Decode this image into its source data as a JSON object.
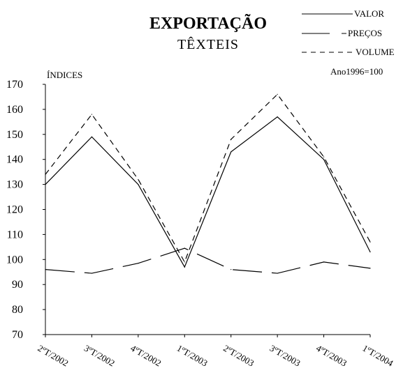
{
  "chart_data": {
    "type": "line",
    "title": "EXPORTAÇÃO",
    "subtitle": "TÊXTEIS",
    "ylabel": "ÍNDICES",
    "note": "Ano1996=100",
    "categories": [
      "2ºT/2002",
      "3ºT/2002",
      "4ºT/2002",
      "1ºT/2003",
      "2ºT/2003",
      "3ºT/2003",
      "4ºT/2003",
      "1ºT/2004"
    ],
    "ylim": [
      70,
      170
    ],
    "yticks": [
      70,
      80,
      90,
      100,
      110,
      120,
      130,
      140,
      150,
      160,
      170
    ],
    "grid": false,
    "legend_position": "top-right",
    "series": [
      {
        "name": "VALOR",
        "legend_label": "VALOR",
        "style": "solid",
        "values": [
          130,
          149,
          130,
          97,
          143,
          157,
          140,
          103
        ]
      },
      {
        "name": "PREÇOS",
        "legend_label": "PREÇOS",
        "style": "long-dash",
        "values": [
          96,
          94.5,
          98.5,
          104.5,
          96,
          94.5,
          99,
          96.5
        ]
      },
      {
        "name": "VOLUME",
        "legend_label": "VOLUME",
        "style": "dash",
        "values": [
          134,
          158,
          132,
          99,
          148,
          166,
          141,
          107
        ]
      }
    ]
  }
}
